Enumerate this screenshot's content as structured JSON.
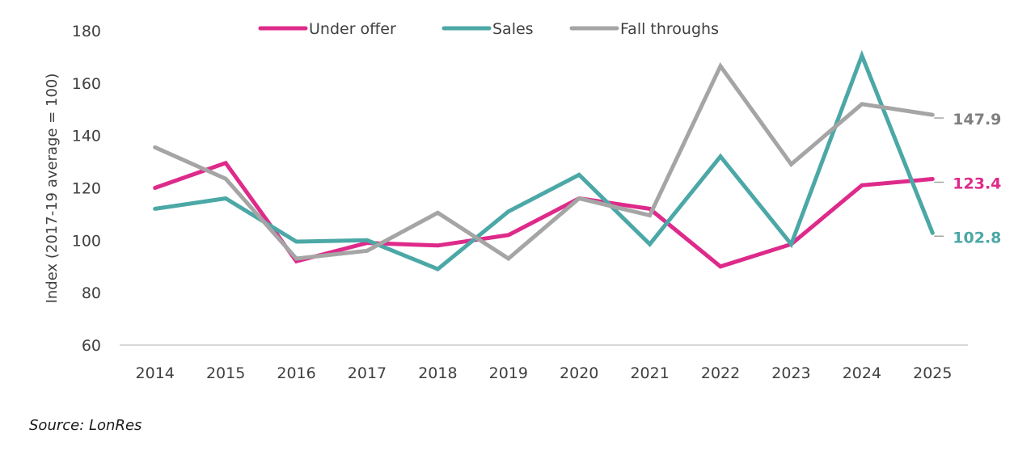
{
  "chart_data": {
    "type": "line",
    "title": "",
    "xlabel": "",
    "ylabel": "Index (2017-19 average = 100)",
    "ylim": [
      60,
      180
    ],
    "yticks": [
      60,
      80,
      100,
      120,
      140,
      160,
      180
    ],
    "grid": false,
    "legend_position": "top-center",
    "categories": [
      "2014",
      "2015",
      "2016",
      "2017",
      "2018",
      "2019",
      "2020",
      "2021",
      "2022",
      "2023",
      "2024",
      "2025"
    ],
    "series": [
      {
        "name": "Under offer",
        "color": "#DE2A8A",
        "values": [
          120,
          129.5,
          92,
          99,
          98,
          102,
          116,
          112,
          90,
          98.5,
          121,
          123.4
        ],
        "end_label": "123.4"
      },
      {
        "name": "Sales",
        "color": "#4BA8A6",
        "values": [
          112,
          116,
          99.5,
          100,
          89,
          111,
          125,
          98.5,
          132,
          98.5,
          170.5,
          102.8
        ],
        "end_label": "102.8"
      },
      {
        "name": "Fall throughs",
        "color": "#A5A5A5",
        "values": [
          135.5,
          123.5,
          93,
          96,
          110.5,
          93,
          116,
          109.5,
          166.5,
          129,
          152,
          147.9
        ],
        "end_label": "147.9",
        "end_label_color": "#7F7F7F"
      }
    ]
  },
  "footer": {
    "source": "Source: LonRes"
  }
}
